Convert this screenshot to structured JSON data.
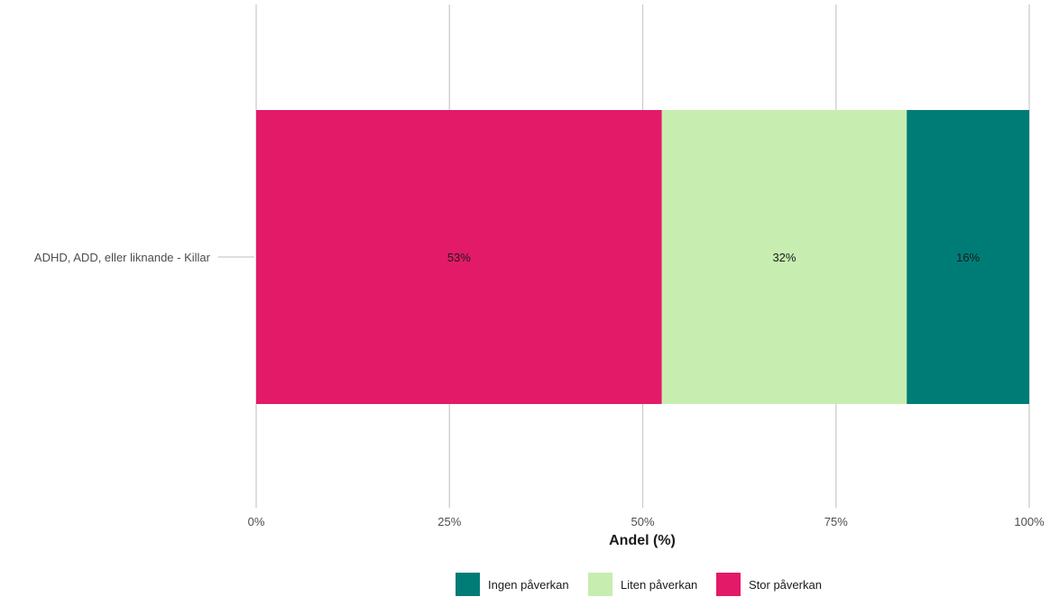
{
  "chart_data": {
    "type": "bar",
    "orientation": "horizontal",
    "stacked": true,
    "categories": [
      "ADHD, ADD, eller liknande - Killar"
    ],
    "series": [
      {
        "name": "Stor påverkan",
        "values": [
          53
        ],
        "label": "53%",
        "color": "#e31a68"
      },
      {
        "name": "Liten påverkan",
        "values": [
          32
        ],
        "label": "32%",
        "color": "#c8edb0"
      },
      {
        "name": "Ingen påverkan",
        "values": [
          16
        ],
        "label": "16%",
        "color": "#007c76"
      }
    ],
    "xlabel": "Andel (%)",
    "ylabel": "",
    "xlim": [
      0,
      100
    ],
    "xticks": [
      {
        "value": 0,
        "label": "0%"
      },
      {
        "value": 25,
        "label": "25%"
      },
      {
        "value": 50,
        "label": "50%"
      },
      {
        "value": 75,
        "label": "75%"
      },
      {
        "value": 100,
        "label": "100%"
      }
    ],
    "grid": true,
    "legend_position": "bottom",
    "legend_order": [
      "Ingen påverkan",
      "Liten påverkan",
      "Stor påverkan"
    ]
  }
}
